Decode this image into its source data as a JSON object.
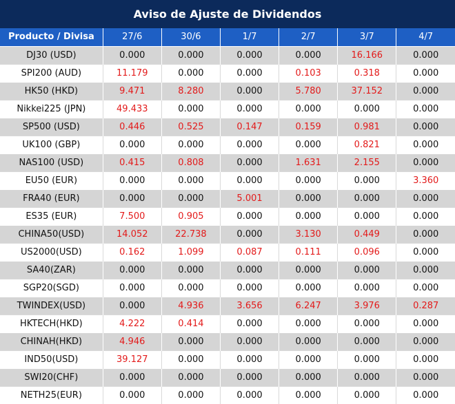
{
  "title": "Aviso de Ajuste de Dividendos",
  "colors": {
    "title_bg": "#0c2a5b",
    "header_bg": "#1e5fc4",
    "positive_value": "#e31a1a",
    "zero_value": "#111111",
    "stripe": "#d5d5d5"
  },
  "table": {
    "headers": [
      "Producto / Divisa",
      "27/6",
      "30/6",
      "1/7",
      "2/7",
      "3/7",
      "4/7"
    ],
    "rows": [
      {
        "product": "DJ30 (USD)",
        "values": [
          "0.000",
          "0.000",
          "0.000",
          "0.000",
          "16.166",
          "0.000"
        ]
      },
      {
        "product": "SPI200 (AUD)",
        "values": [
          "11.179",
          "0.000",
          "0.000",
          "0.103",
          "0.318",
          "0.000"
        ]
      },
      {
        "product": "HK50 (HKD)",
        "values": [
          "9.471",
          "8.280",
          "0.000",
          "5.780",
          "37.152",
          "0.000"
        ]
      },
      {
        "product": "Nikkei225 (JPN)",
        "values": [
          "49.433",
          "0.000",
          "0.000",
          "0.000",
          "0.000",
          "0.000"
        ]
      },
      {
        "product": "SP500 (USD)",
        "values": [
          "0.446",
          "0.525",
          "0.147",
          "0.159",
          "0.981",
          "0.000"
        ]
      },
      {
        "product": "UK100 (GBP)",
        "values": [
          "0.000",
          "0.000",
          "0.000",
          "0.000",
          "0.821",
          "0.000"
        ]
      },
      {
        "product": "NAS100 (USD)",
        "values": [
          "0.415",
          "0.808",
          "0.000",
          "1.631",
          "2.155",
          "0.000"
        ]
      },
      {
        "product": "EU50 (EUR)",
        "values": [
          "0.000",
          "0.000",
          "0.000",
          "0.000",
          "0.000",
          "3.360"
        ]
      },
      {
        "product": "FRA40 (EUR)",
        "values": [
          "0.000",
          "0.000",
          "5.001",
          "0.000",
          "0.000",
          "0.000"
        ]
      },
      {
        "product": "ES35 (EUR)",
        "values": [
          "7.500",
          "0.905",
          "0.000",
          "0.000",
          "0.000",
          "0.000"
        ]
      },
      {
        "product": "CHINA50(USD)",
        "values": [
          "14.052",
          "22.738",
          "0.000",
          "3.130",
          "0.449",
          "0.000"
        ]
      },
      {
        "product": "US2000(USD)",
        "values": [
          "0.162",
          "1.099",
          "0.087",
          "0.111",
          "0.096",
          "0.000"
        ]
      },
      {
        "product": "SA40(ZAR)",
        "values": [
          "0.000",
          "0.000",
          "0.000",
          "0.000",
          "0.000",
          "0.000"
        ]
      },
      {
        "product": "SGP20(SGD)",
        "values": [
          "0.000",
          "0.000",
          "0.000",
          "0.000",
          "0.000",
          "0.000"
        ]
      },
      {
        "product": "TWINDEX(USD)",
        "values": [
          "0.000",
          "4.936",
          "3.656",
          "6.247",
          "3.976",
          "0.287"
        ]
      },
      {
        "product": "HKTECH(HKD)",
        "values": [
          "4.222",
          "0.414",
          "0.000",
          "0.000",
          "0.000",
          "0.000"
        ]
      },
      {
        "product": "CHINAH(HKD)",
        "values": [
          "4.946",
          "0.000",
          "0.000",
          "0.000",
          "0.000",
          "0.000"
        ]
      },
      {
        "product": "IND50(USD)",
        "values": [
          "39.127",
          "0.000",
          "0.000",
          "0.000",
          "0.000",
          "0.000"
        ]
      },
      {
        "product": "SWI20(CHF)",
        "values": [
          "0.000",
          "0.000",
          "0.000",
          "0.000",
          "0.000",
          "0.000"
        ]
      },
      {
        "product": "NETH25(EUR)",
        "values": [
          "0.000",
          "0.000",
          "0.000",
          "0.000",
          "0.000",
          "0.000"
        ]
      }
    ]
  }
}
